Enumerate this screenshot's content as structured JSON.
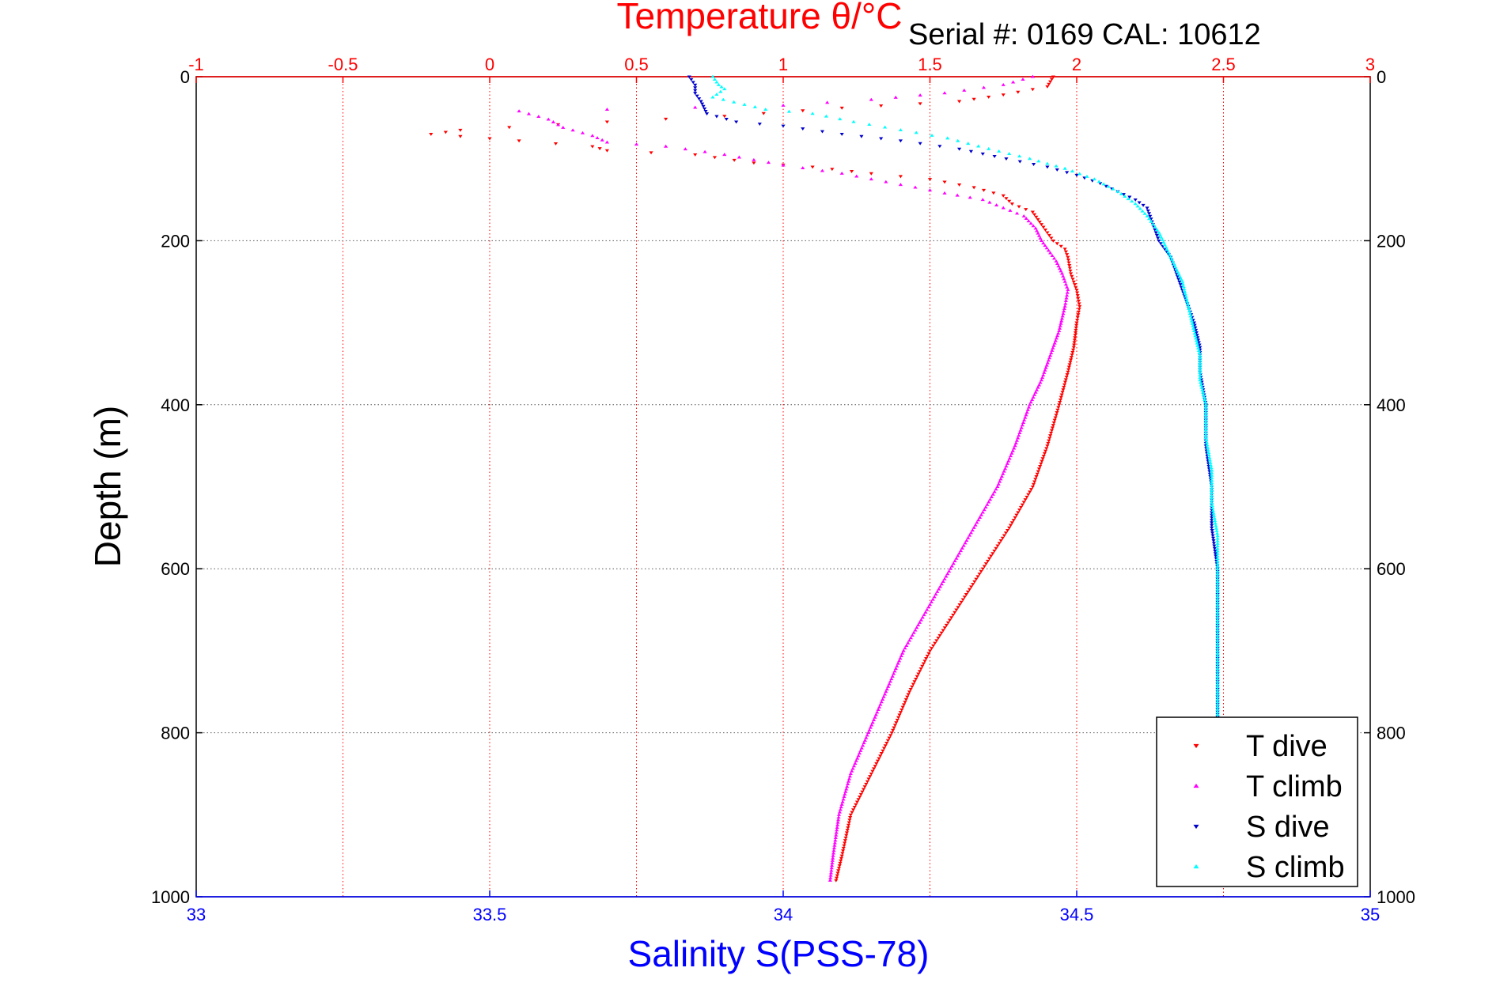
{
  "chart_data": {
    "type": "scatter",
    "title": "Temperature θ/°C",
    "serial_label": "Serial #: 0169 CAL: 10612",
    "xlabel_bottom": "Salinity S(PSS-78)",
    "xlabel_top": "Temperature θ/°C",
    "ylabel": "Depth (m)",
    "x_bottom_lim": [
      33,
      35
    ],
    "x_top_lim": [
      -1,
      3
    ],
    "ylim": [
      0,
      1000
    ],
    "y_reversed": true,
    "x_bottom_ticks": [
      "33",
      "33.5",
      "34",
      "34.5",
      "35"
    ],
    "x_top_ticks": [
      "-1",
      "-0.5",
      "0",
      "0.5",
      "1",
      "1.5",
      "2",
      "2.5",
      "3"
    ],
    "y_ticks": [
      "0",
      "200",
      "400",
      "600",
      "800",
      "1000"
    ],
    "grid": true,
    "legend_position": "bottom-right",
    "colors": {
      "temperature_axis": "#ff0000",
      "salinity_axis": "#0000ff",
      "grid": "#555555"
    },
    "series": [
      {
        "name": "T dive",
        "axis": "top",
        "color": "#ff0000",
        "marker": "triangle-down",
        "points": [
          [
            1.92,
            0
          ],
          [
            1.9,
            12
          ],
          [
            1.75,
            22
          ],
          [
            1.6,
            30
          ],
          [
            1.2,
            38
          ],
          [
            0.8,
            48
          ],
          [
            0.4,
            55
          ],
          [
            -0.1,
            65
          ],
          [
            -0.2,
            70
          ],
          [
            0.1,
            78
          ],
          [
            0.35,
            85
          ],
          [
            0.4,
            90
          ],
          [
            0.7,
            95
          ],
          [
            0.9,
            105
          ],
          [
            1.1,
            110
          ],
          [
            1.3,
            118
          ],
          [
            1.5,
            125
          ],
          [
            1.65,
            135
          ],
          [
            1.75,
            145
          ],
          [
            1.78,
            155
          ],
          [
            1.85,
            165
          ],
          [
            1.88,
            180
          ],
          [
            1.9,
            190
          ],
          [
            1.92,
            200
          ],
          [
            1.96,
            210
          ],
          [
            1.97,
            220
          ],
          [
            1.98,
            240
          ],
          [
            2.0,
            260
          ],
          [
            2.01,
            280
          ],
          [
            2.0,
            300
          ],
          [
            1.99,
            330
          ],
          [
            1.97,
            360
          ],
          [
            1.94,
            400
          ],
          [
            1.9,
            450
          ],
          [
            1.85,
            500
          ],
          [
            1.77,
            550
          ],
          [
            1.68,
            600
          ],
          [
            1.59,
            650
          ],
          [
            1.5,
            700
          ],
          [
            1.43,
            750
          ],
          [
            1.37,
            800
          ],
          [
            1.3,
            850
          ],
          [
            1.23,
            900
          ],
          [
            1.2,
            950
          ],
          [
            1.18,
            980
          ]
        ]
      },
      {
        "name": "T climb",
        "axis": "top",
        "color": "#ff00ff",
        "marker": "triangle-up",
        "points": [
          [
            1.85,
            0
          ],
          [
            1.75,
            10
          ],
          [
            1.55,
            20
          ],
          [
            1.3,
            28
          ],
          [
            1.0,
            35
          ],
          [
            0.4,
            40
          ],
          [
            0.1,
            42
          ],
          [
            0.2,
            52
          ],
          [
            0.25,
            62
          ],
          [
            0.35,
            72
          ],
          [
            0.4,
            80
          ],
          [
            0.6,
            85
          ],
          [
            0.8,
            95
          ],
          [
            1.0,
            108
          ],
          [
            1.2,
            118
          ],
          [
            1.3,
            125
          ],
          [
            1.45,
            135
          ],
          [
            1.55,
            142
          ],
          [
            1.68,
            150
          ],
          [
            1.75,
            160
          ],
          [
            1.82,
            170
          ],
          [
            1.86,
            185
          ],
          [
            1.88,
            200
          ],
          [
            1.91,
            215
          ],
          [
            1.93,
            225
          ],
          [
            1.95,
            240
          ],
          [
            1.97,
            260
          ],
          [
            1.96,
            280
          ],
          [
            1.94,
            310
          ],
          [
            1.91,
            340
          ],
          [
            1.88,
            370
          ],
          [
            1.84,
            400
          ],
          [
            1.79,
            450
          ],
          [
            1.73,
            500
          ],
          [
            1.65,
            550
          ],
          [
            1.57,
            600
          ],
          [
            1.49,
            650
          ],
          [
            1.41,
            700
          ],
          [
            1.35,
            750
          ],
          [
            1.29,
            800
          ],
          [
            1.23,
            850
          ],
          [
            1.19,
            900
          ],
          [
            1.17,
            950
          ],
          [
            1.16,
            980
          ]
        ]
      },
      {
        "name": "S dive",
        "axis": "bottom",
        "color": "#0000cc",
        "marker": "triangle-down",
        "points": [
          [
            33.84,
            0
          ],
          [
            33.85,
            10
          ],
          [
            33.85,
            20
          ],
          [
            33.86,
            30
          ],
          [
            33.87,
            45
          ],
          [
            33.92,
            55
          ],
          [
            34.0,
            60
          ],
          [
            34.1,
            70
          ],
          [
            34.2,
            78
          ],
          [
            34.3,
            88
          ],
          [
            34.38,
            100
          ],
          [
            34.45,
            110
          ],
          [
            34.5,
            120
          ],
          [
            34.54,
            130
          ],
          [
            34.57,
            140
          ],
          [
            34.6,
            150
          ],
          [
            34.62,
            160
          ],
          [
            34.63,
            180
          ],
          [
            34.64,
            200
          ],
          [
            34.66,
            220
          ],
          [
            34.67,
            240
          ],
          [
            34.68,
            260
          ],
          [
            34.69,
            280
          ],
          [
            34.7,
            300
          ],
          [
            34.71,
            330
          ],
          [
            34.71,
            360
          ],
          [
            34.72,
            400
          ],
          [
            34.72,
            450
          ],
          [
            34.73,
            500
          ],
          [
            34.73,
            550
          ],
          [
            34.74,
            600
          ],
          [
            34.74,
            650
          ],
          [
            34.74,
            700
          ],
          [
            34.74,
            750
          ],
          [
            34.74,
            790
          ]
        ]
      },
      {
        "name": "S climb",
        "axis": "bottom",
        "color": "#00ffff",
        "marker": "triangle-up",
        "points": [
          [
            33.88,
            0
          ],
          [
            33.89,
            10
          ],
          [
            33.9,
            15
          ],
          [
            33.88,
            25
          ],
          [
            33.97,
            40
          ],
          [
            34.05,
            45
          ],
          [
            34.12,
            55
          ],
          [
            34.2,
            65
          ],
          [
            34.28,
            75
          ],
          [
            34.35,
            88
          ],
          [
            34.42,
            100
          ],
          [
            34.48,
            112
          ],
          [
            34.53,
            125
          ],
          [
            34.57,
            140
          ],
          [
            34.6,
            155
          ],
          [
            34.62,
            170
          ],
          [
            34.64,
            190
          ],
          [
            34.66,
            220
          ],
          [
            34.68,
            250
          ],
          [
            34.69,
            280
          ],
          [
            34.7,
            310
          ],
          [
            34.71,
            340
          ],
          [
            34.71,
            370
          ],
          [
            34.72,
            400
          ],
          [
            34.72,
            440
          ],
          [
            34.73,
            480
          ],
          [
            34.73,
            520
          ],
          [
            34.74,
            560
          ],
          [
            34.74,
            600
          ],
          [
            34.74,
            650
          ],
          [
            34.74,
            700
          ],
          [
            34.74,
            750
          ],
          [
            34.74,
            790
          ]
        ]
      }
    ]
  }
}
